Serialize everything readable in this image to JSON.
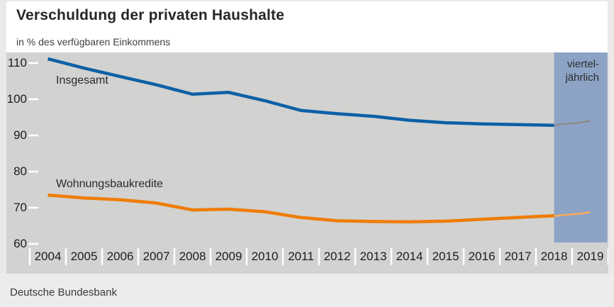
{
  "header": {
    "title": "Verschuldung der privaten Haushalte",
    "subtitle": "in % des verfügbaren Einkommens"
  },
  "footer": {
    "source": "Deutsche Bundesbank"
  },
  "colors": {
    "insgesamt": "#0c60a6",
    "wohnungsbaukredite": "#ee7d01",
    "insgesamt_quarterly": "#8b8b88",
    "wohnungsbaukredite_quarterly": "#f9aa55",
    "quarterly_band": "#8ca3c6",
    "plot_background": "#d2d2d1",
    "tick": "#ffffff"
  },
  "chart_data": {
    "type": "line",
    "title": "Verschuldung der privaten Haushalte",
    "subtitle": "in % des verfügbaren Einkommens",
    "ylabel": "% des verfügbaren Einkommens",
    "xlabel": "",
    "grid": false,
    "legend_position": "inline-labels",
    "ylim": [
      60,
      110
    ],
    "yticks": [
      110,
      100,
      90,
      80,
      70,
      60
    ],
    "x_tick_labels": [
      "2004",
      "2005",
      "2006",
      "2007",
      "2008",
      "2009",
      "2010",
      "2011",
      "2012",
      "2013",
      "2014",
      "2015",
      "2016",
      "2017",
      "2018",
      "2019"
    ],
    "series": [
      {
        "name": "Insgesamt",
        "frequency": "jährlich",
        "quarterly": false,
        "color": "#0c60a6",
        "x": [
          2004,
          2005,
          2006,
          2007,
          2008,
          2009,
          2010,
          2011,
          2012,
          2013,
          2014,
          2015,
          2016,
          2017,
          2018
        ],
        "values": [
          111.2,
          108.6,
          106.3,
          104.0,
          101.4,
          101.9,
          99.6,
          96.9,
          96.0,
          95.3,
          94.2,
          93.5,
          93.2,
          93.0,
          92.8
        ]
      },
      {
        "name": "Wohnungsbaukredite",
        "frequency": "jährlich",
        "quarterly": false,
        "color": "#ee7d01",
        "x": [
          2004,
          2005,
          2006,
          2007,
          2008,
          2009,
          2010,
          2011,
          2012,
          2013,
          2014,
          2015,
          2016,
          2017,
          2018
        ],
        "values": [
          73.5,
          72.7,
          72.2,
          71.3,
          69.4,
          69.6,
          68.9,
          67.3,
          66.4,
          66.2,
          66.1,
          66.3,
          66.8,
          67.3,
          67.8
        ]
      },
      {
        "name": "Insgesamt vierteljährlich",
        "frequency": "vierteljährlich",
        "quarterly": true,
        "color": "#8b8b88",
        "x": [
          2018.0,
          2018.25,
          2018.5,
          2018.75,
          2019.0
        ],
        "values": [
          92.8,
          93.2,
          93.3,
          93.6,
          94.1
        ]
      },
      {
        "name": "Wohnungsbaukredite vierteljährlich",
        "frequency": "vierteljährlich",
        "quarterly": true,
        "color": "#f9aa55",
        "x": [
          2018.0,
          2018.25,
          2018.5,
          2018.75,
          2019.0
        ],
        "values": [
          67.7,
          68.0,
          68.2,
          68.4,
          68.8
        ]
      }
    ],
    "quarterly_band": {
      "label_line1": "viertel-",
      "label_line2": "jährlich",
      "from": 2018.0,
      "to": 2019.47,
      "color": "#8ca3c6"
    }
  }
}
